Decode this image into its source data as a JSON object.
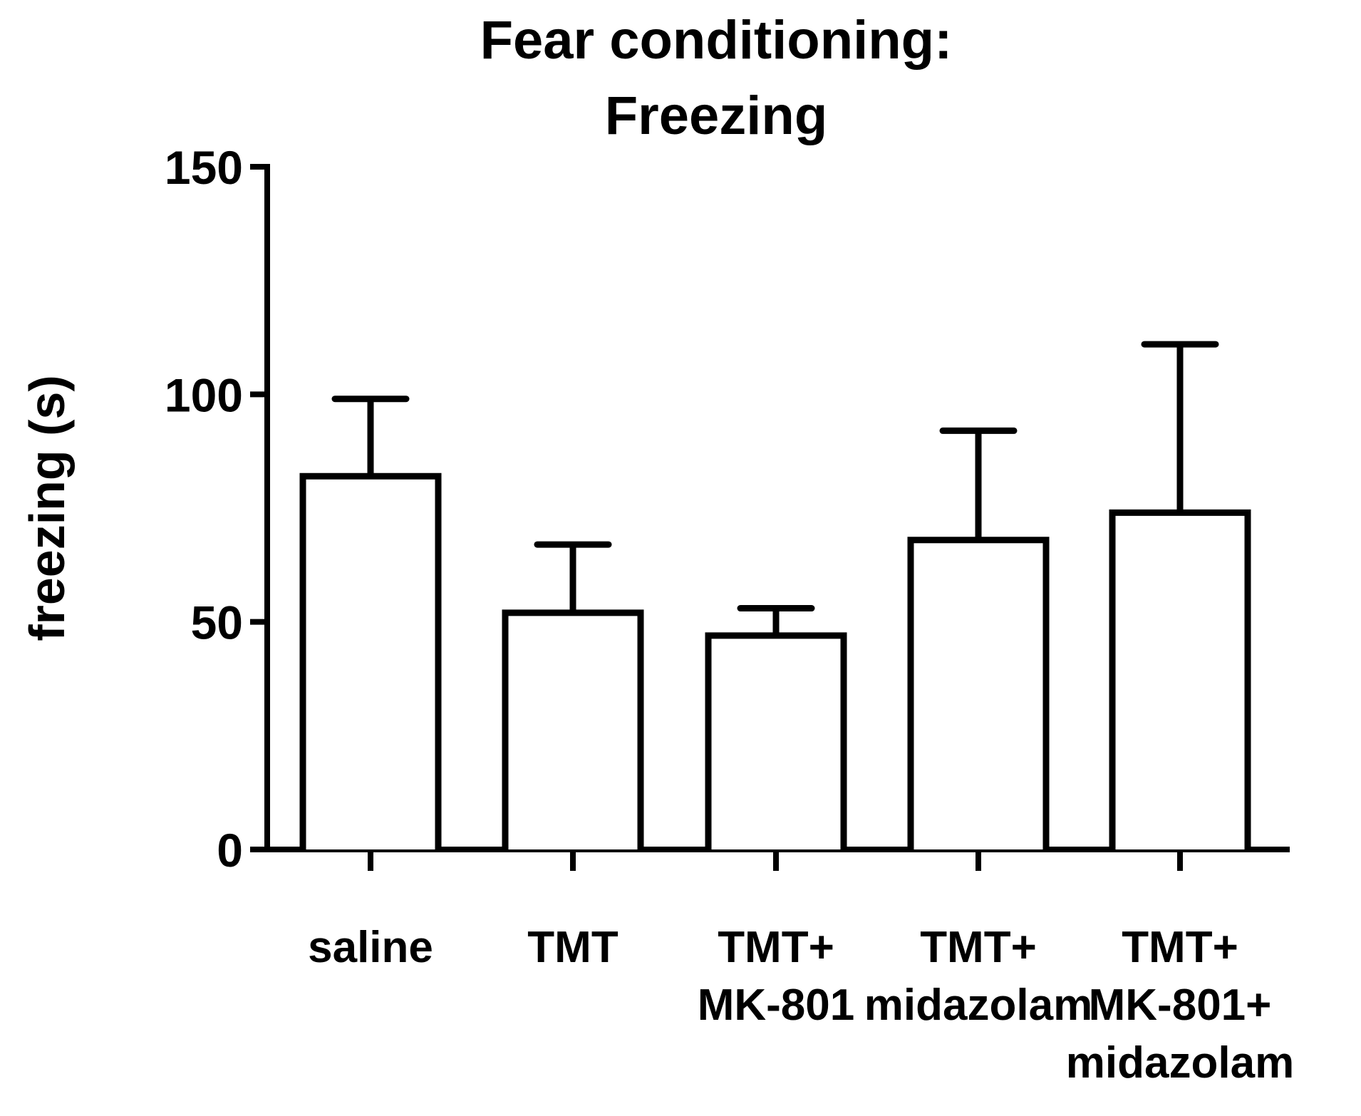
{
  "chart_data": {
    "type": "bar",
    "title": [
      "Fear conditioning:",
      "Freezing"
    ],
    "ylabel": "freezing (s)",
    "xlabel": "",
    "ylim": [
      0,
      150
    ],
    "yticks": [
      0,
      50,
      100,
      150
    ],
    "categories": [
      [
        "saline"
      ],
      [
        "TMT"
      ],
      [
        "TMT+",
        "MK-801"
      ],
      [
        "TMT+",
        "midazolam"
      ],
      [
        "TMT+",
        "MK-801+",
        "midazolam"
      ]
    ],
    "values": [
      82,
      52,
      47,
      68,
      74
    ],
    "errors": [
      17,
      15,
      6,
      24,
      37
    ],
    "error_direction": "up",
    "grid": false,
    "legend": "none"
  },
  "colors": {
    "bar_fill": "#ffffff",
    "stroke": "#000000",
    "background": "#ffffff"
  }
}
